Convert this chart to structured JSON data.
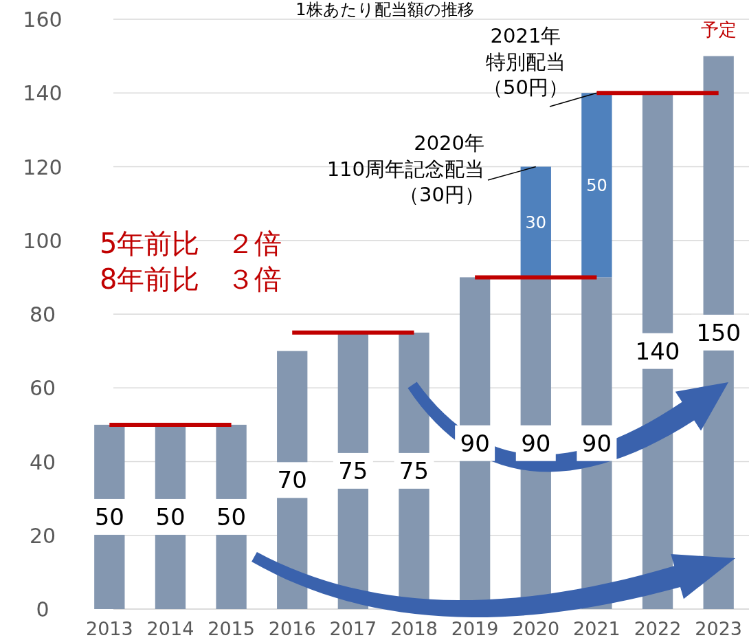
{
  "chart_data": {
    "type": "bar",
    "title": "1株あたり配当額の推移",
    "categories": [
      "2013",
      "2014",
      "2015",
      "2016",
      "2017",
      "2018",
      "2019",
      "2020",
      "2021",
      "2022",
      "2023"
    ],
    "stacked": true,
    "ylim": [
      0,
      160
    ],
    "yticks": [
      0,
      20,
      40,
      60,
      80,
      100,
      120,
      140,
      160
    ],
    "grid": "y",
    "series": [
      {
        "color": "#8497b0",
        "values": [
          50,
          50,
          50,
          70,
          75,
          75,
          90,
          90,
          90,
          140,
          150
        ],
        "value_labels": [
          "50",
          "50",
          "50",
          "70",
          "75",
          "75",
          "90",
          "90",
          "90",
          "140",
          "150"
        ]
      },
      {
        "color": "#4f81bd",
        "values": [
          null,
          null,
          null,
          null,
          null,
          null,
          null,
          30,
          50,
          null,
          null
        ],
        "value_labels": [
          null,
          null,
          null,
          null,
          null,
          null,
          null,
          "30",
          "50",
          null,
          null
        ]
      },
      {
        "type": "line",
        "color": "#c00000",
        "values": [
          50,
          50,
          50,
          null,
          null,
          null,
          null,
          null,
          null,
          null,
          null
        ]
      },
      {
        "type": "line",
        "color": "#c00000",
        "values": [
          null,
          null,
          null,
          75,
          75,
          75,
          null,
          null,
          null,
          null,
          null
        ]
      },
      {
        "type": "line",
        "color": "#c00000",
        "values": [
          null,
          null,
          null,
          null,
          null,
          null,
          90,
          90,
          90,
          null,
          null
        ]
      },
      {
        "type": "line",
        "color": "#c00000",
        "values": [
          null,
          null,
          null,
          null,
          null,
          null,
          null,
          null,
          140,
          140,
          140
        ]
      }
    ],
    "annotations": [
      "5年前比　２倍",
      "8年前比　３倍",
      {
        "text": "2020年110周年記念配当（30円）",
        "x": "2020",
        "y": 120
      },
      {
        "text": "2021年特別配当（50円）",
        "x": "2021",
        "y": 140
      },
      {
        "text": "予定",
        "x": "2023",
        "y": 150
      }
    ]
  }
}
